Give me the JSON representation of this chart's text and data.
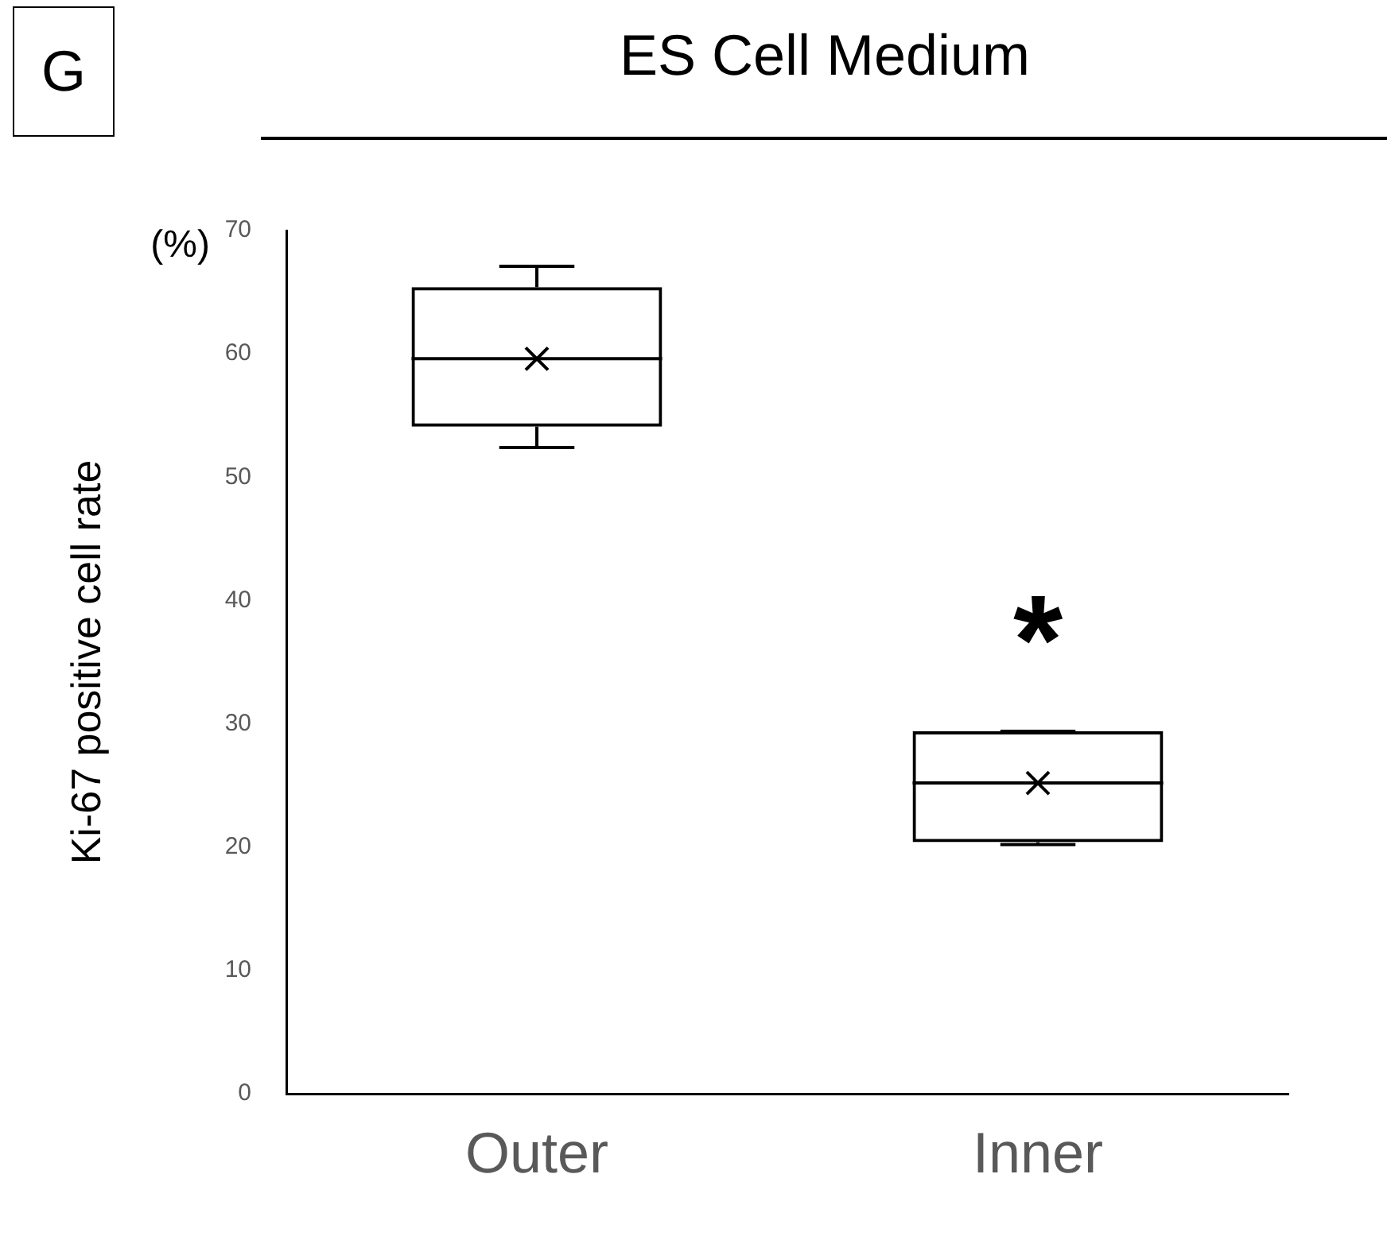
{
  "chart_data": {
    "type": "box",
    "title": "ES Cell Medium",
    "ylabel": "Ki-67 positive cell rate",
    "categories": [
      "Outer",
      "Inner"
    ],
    "boxes": [
      {
        "low": 52.4,
        "q1": 54.1,
        "median": 59.6,
        "q3": 65.4,
        "high": 67.1,
        "mean": 59.6
      },
      {
        "low": 20.2,
        "q1": 20.4,
        "median": 25.2,
        "q3": 29.4,
        "high": 29.4,
        "mean": 25.2
      }
    ],
    "ylim": [
      0,
      70
    ],
    "yticks": [
      0,
      10,
      20,
      30,
      40,
      50,
      60,
      70
    ],
    "grid": false,
    "legend": false,
    "annotations": [
      "G",
      "(%)",
      "*"
    ]
  }
}
